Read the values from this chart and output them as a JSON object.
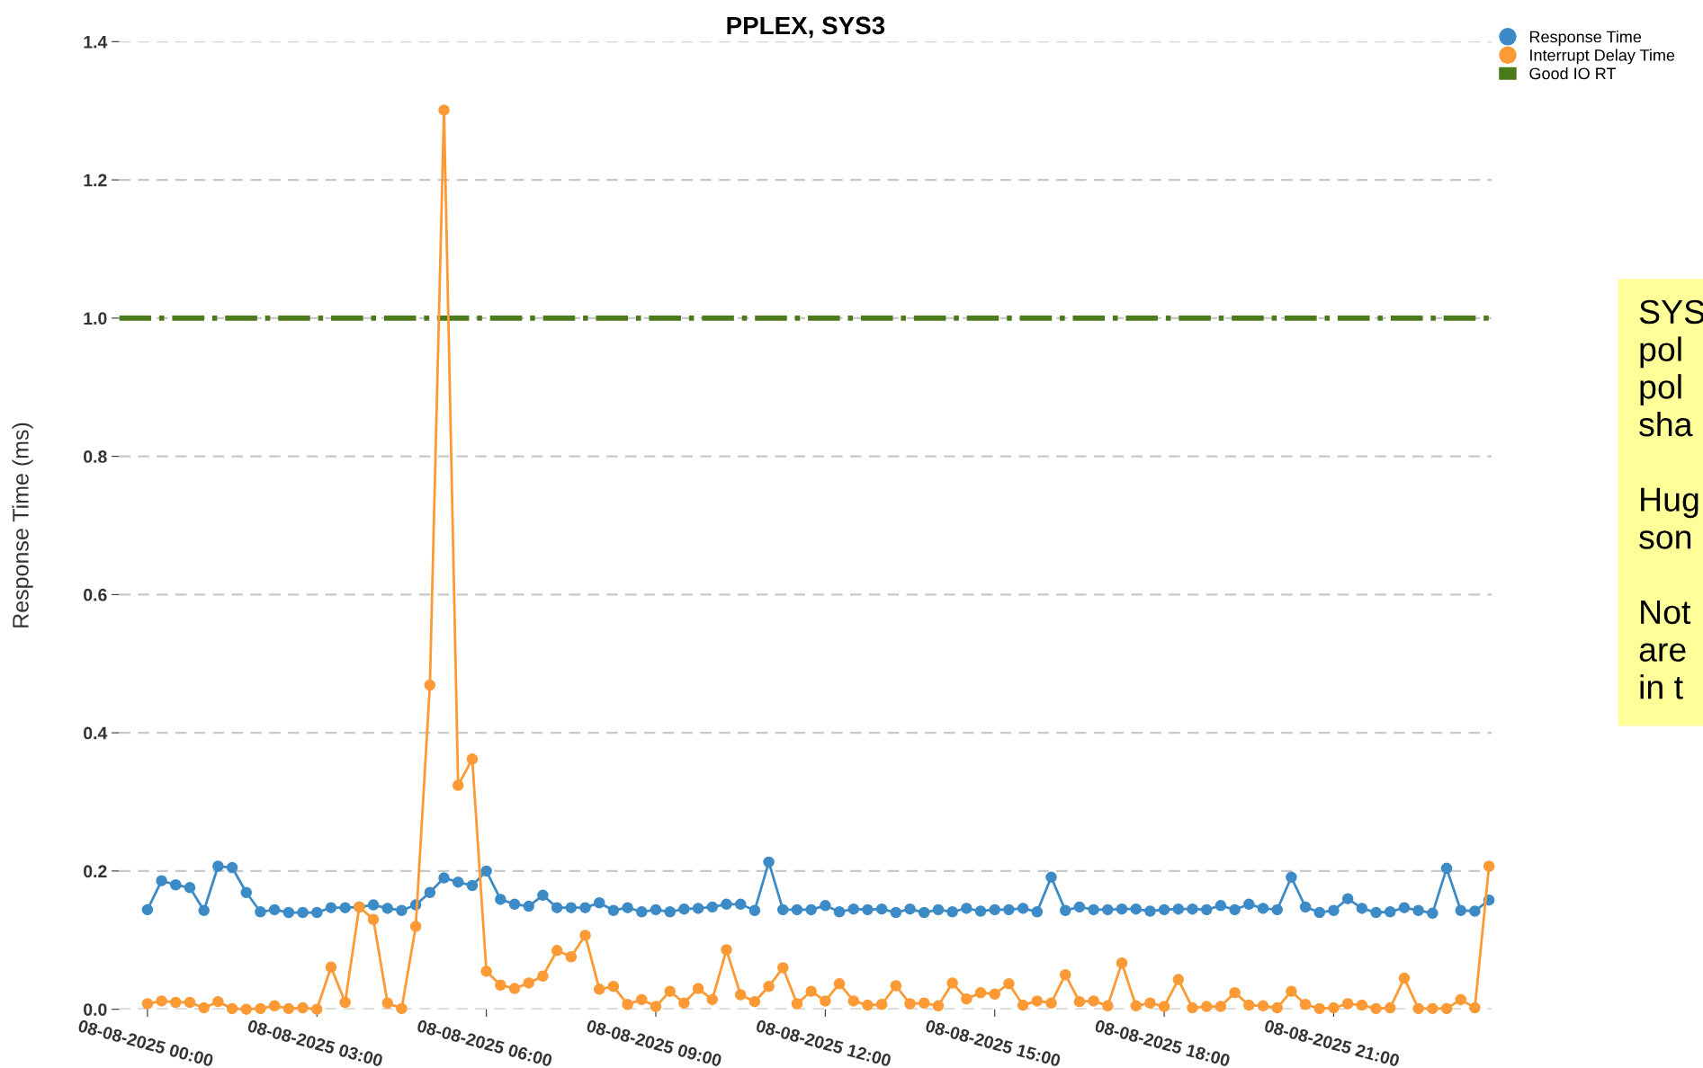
{
  "chart_data": {
    "type": "line",
    "title": "PPLEX, SYS3",
    "ylabel": "Response Time (ms)",
    "x": [
      "2025-08-08T00:00",
      "2025-08-08T00:15",
      "2025-08-08T00:30",
      "2025-08-08T00:45",
      "2025-08-08T01:00",
      "2025-08-08T01:15",
      "2025-08-08T01:30",
      "2025-08-08T01:45",
      "2025-08-08T02:00",
      "2025-08-08T02:15",
      "2025-08-08T02:30",
      "2025-08-08T02:45",
      "2025-08-08T03:00",
      "2025-08-08T03:15",
      "2025-08-08T03:30",
      "2025-08-08T03:45",
      "2025-08-08T04:00",
      "2025-08-08T04:15",
      "2025-08-08T04:30",
      "2025-08-08T04:45",
      "2025-08-08T05:00",
      "2025-08-08T05:15",
      "2025-08-08T05:30",
      "2025-08-08T05:45",
      "2025-08-08T06:00",
      "2025-08-08T06:15",
      "2025-08-08T06:30",
      "2025-08-08T06:45",
      "2025-08-08T07:00",
      "2025-08-08T07:15",
      "2025-08-08T07:30",
      "2025-08-08T07:45",
      "2025-08-08T08:00",
      "2025-08-08T08:15",
      "2025-08-08T08:30",
      "2025-08-08T08:45",
      "2025-08-08T09:00",
      "2025-08-08T09:15",
      "2025-08-08T09:30",
      "2025-08-08T09:45",
      "2025-08-08T10:00",
      "2025-08-08T10:15",
      "2025-08-08T10:30",
      "2025-08-08T10:45",
      "2025-08-08T11:00",
      "2025-08-08T11:15",
      "2025-08-08T11:30",
      "2025-08-08T11:45",
      "2025-08-08T12:00",
      "2025-08-08T12:15",
      "2025-08-08T12:30",
      "2025-08-08T12:45",
      "2025-08-08T13:00",
      "2025-08-08T13:15",
      "2025-08-08T13:30",
      "2025-08-08T13:45",
      "2025-08-08T14:00",
      "2025-08-08T14:15",
      "2025-08-08T14:30",
      "2025-08-08T14:45",
      "2025-08-08T15:00",
      "2025-08-08T15:15",
      "2025-08-08T15:30",
      "2025-08-08T15:45",
      "2025-08-08T16:00",
      "2025-08-08T16:15",
      "2025-08-08T16:30",
      "2025-08-08T16:45",
      "2025-08-08T17:00",
      "2025-08-08T17:15",
      "2025-08-08T17:30",
      "2025-08-08T17:45",
      "2025-08-08T18:00",
      "2025-08-08T18:15",
      "2025-08-08T18:30",
      "2025-08-08T18:45",
      "2025-08-08T19:00",
      "2025-08-08T19:15",
      "2025-08-08T19:30",
      "2025-08-08T19:45",
      "2025-08-08T20:00",
      "2025-08-08T20:15",
      "2025-08-08T20:30",
      "2025-08-08T20:45",
      "2025-08-08T21:00",
      "2025-08-08T21:15",
      "2025-08-08T21:30",
      "2025-08-08T21:45",
      "2025-08-08T22:00",
      "2025-08-08T22:15",
      "2025-08-08T22:30",
      "2025-08-08T22:45",
      "2025-08-08T23:00",
      "2025-08-08T23:15",
      "2025-08-08T23:30",
      "2025-08-08T23:45"
    ],
    "series": [
      {
        "name": "Response Time",
        "color": "#3d8bc6",
        "values": [
          0.144,
          0.186,
          0.18,
          0.176,
          0.143,
          0.207,
          0.205,
          0.169,
          0.141,
          0.144,
          0.14,
          0.14,
          0.14,
          0.147,
          0.147,
          0.148,
          0.151,
          0.146,
          0.143,
          0.151,
          0.169,
          0.19,
          0.184,
          0.179,
          0.2,
          0.159,
          0.152,
          0.149,
          0.165,
          0.147,
          0.147,
          0.147,
          0.154,
          0.143,
          0.147,
          0.141,
          0.144,
          0.141,
          0.145,
          0.146,
          0.148,
          0.152,
          0.152,
          0.143,
          0.213,
          0.144,
          0.144,
          0.144,
          0.15,
          0.141,
          0.145,
          0.144,
          0.145,
          0.14,
          0.145,
          0.14,
          0.144,
          0.141,
          0.146,
          0.142,
          0.144,
          0.144,
          0.146,
          0.141,
          0.191,
          0.143,
          0.148,
          0.144,
          0.144,
          0.145,
          0.145,
          0.142,
          0.144,
          0.145,
          0.145,
          0.144,
          0.15,
          0.144,
          0.152,
          0.146,
          0.144,
          0.191,
          0.148,
          0.14,
          0.143,
          0.16,
          0.146,
          0.14,
          0.141,
          0.147,
          0.143,
          0.139,
          0.204,
          0.143,
          0.142,
          0.158
        ]
      },
      {
        "name": "Interrupt Delay Time",
        "color": "#fd9a35",
        "values": [
          0.008,
          0.012,
          0.01,
          0.01,
          0.002,
          0.011,
          0.001,
          0.0,
          0.001,
          0.005,
          0.001,
          0.002,
          0.0,
          0.061,
          0.01,
          0.148,
          0.13,
          0.009,
          0.001,
          0.12,
          0.469,
          1.301,
          0.324,
          0.362,
          0.055,
          0.035,
          0.03,
          0.038,
          0.048,
          0.085,
          0.076,
          0.107,
          0.029,
          0.033,
          0.007,
          0.014,
          0.004,
          0.026,
          0.009,
          0.03,
          0.014,
          0.086,
          0.021,
          0.011,
          0.033,
          0.06,
          0.008,
          0.026,
          0.012,
          0.037,
          0.012,
          0.006,
          0.007,
          0.034,
          0.008,
          0.009,
          0.005,
          0.038,
          0.015,
          0.024,
          0.022,
          0.037,
          0.006,
          0.012,
          0.009,
          0.05,
          0.011,
          0.012,
          0.005,
          0.067,
          0.005,
          0.009,
          0.004,
          0.043,
          0.002,
          0.004,
          0.004,
          0.024,
          0.006,
          0.005,
          0.002,
          0.026,
          0.007,
          0.001,
          0.002,
          0.008,
          0.006,
          0.001,
          0.002,
          0.045,
          0.001,
          0.001,
          0.001,
          0.014,
          0.002,
          0.207
        ]
      }
    ],
    "ref_lines": [
      {
        "axis": "y",
        "value": 1.0,
        "label": "Good IO RT",
        "color": "#4a7a19",
        "line_style": "dashdot"
      }
    ],
    "xlim": [
      "2025-08-07T23:30",
      "2025-08-08T23:48"
    ],
    "xticks": [
      {
        "value": "2025-08-08T00:00",
        "label": "08-08-2025 00:00"
      },
      {
        "value": "2025-08-08T03:00",
        "label": "08-08-2025 03:00"
      },
      {
        "value": "2025-08-08T06:00",
        "label": "08-08-2025 06:00"
      },
      {
        "value": "2025-08-08T09:00",
        "label": "08-08-2025 09:00"
      },
      {
        "value": "2025-08-08T12:00",
        "label": "08-08-2025 12:00"
      },
      {
        "value": "2025-08-08T15:00",
        "label": "08-08-2025 15:00"
      },
      {
        "value": "2025-08-08T18:00",
        "label": "08-08-2025 18:00"
      },
      {
        "value": "2025-08-08T21:00",
        "label": "08-08-2025 21:00"
      }
    ],
    "ylim": [
      0,
      1.4
    ],
    "yticks": [
      {
        "value": 0,
        "label": "0.0"
      },
      {
        "value": 0.2,
        "label": "0.2"
      },
      {
        "value": 0.4,
        "label": "0.4"
      },
      {
        "value": 0.6,
        "label": "0.6"
      },
      {
        "value": 0.8,
        "label": "0.8"
      },
      {
        "value": 1.0,
        "label": "1.0"
      },
      {
        "value": 1.2,
        "label": "1.2"
      },
      {
        "value": 1.4,
        "label": "1.4"
      }
    ],
    "grid": "y",
    "legend": "top right",
    "marker": "circle",
    "line_style": "solid",
    "annotations": [
      "SYS\npol\npol\nsha\n\nHug\nson\n\nNot\nare\nin t"
    ]
  }
}
